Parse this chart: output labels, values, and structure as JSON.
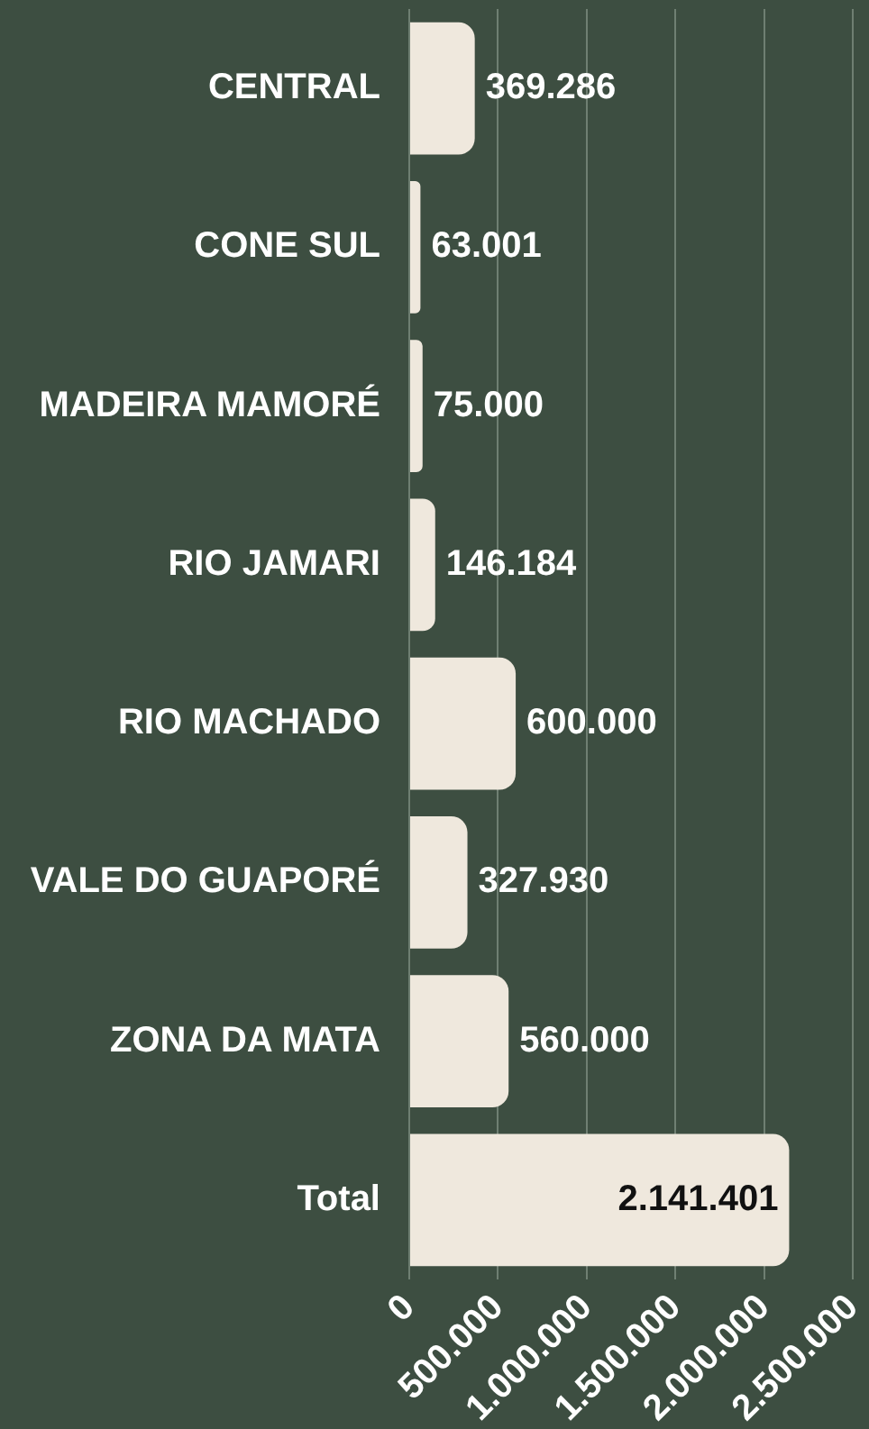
{
  "chart_data": {
    "type": "bar",
    "orientation": "horizontal",
    "categories": [
      "CENTRAL",
      "CONE SUL",
      "MADEIRA MAMORÉ",
      "RIO JAMARI",
      "RIO MACHADO",
      "VALE DO GUAPORÉ",
      "ZONA DA MATA",
      "Total"
    ],
    "values": [
      369286,
      63001,
      75000,
      146184,
      600000,
      327930,
      560000,
      2141401
    ],
    "value_labels": [
      "369.286",
      "63.001",
      "75.000",
      "146.184",
      "600.000",
      "327.930",
      "560.000",
      "2.141.401"
    ],
    "color": "#efe8dd",
    "xlim": [
      0,
      2500000
    ],
    "xticks": [
      0,
      {
        "value": 500000,
        "label": "500.000"
      },
      {
        "value": 1000000,
        "label": "1.000.000"
      },
      {
        "value": 1500000,
        "label": "1.500.000"
      },
      {
        "value": 2000000,
        "label": "2.000.000"
      },
      {
        "value": 2500000,
        "label": "2.500.000"
      }
    ],
    "grid": "x",
    "legend": false
  }
}
